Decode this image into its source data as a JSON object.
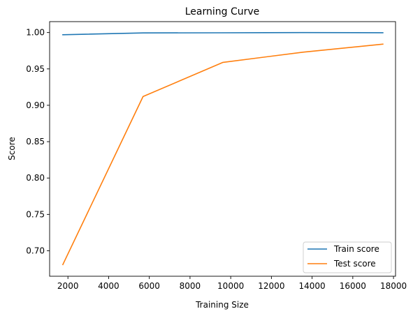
{
  "chart_data": {
    "type": "line",
    "title": "Learning Curve",
    "xlabel": "Training Size",
    "ylabel": "Score",
    "xlim": [
      1100,
      18100
    ],
    "ylim": [
      0.665,
      1.015
    ],
    "xticks": [
      2000,
      4000,
      6000,
      8000,
      10000,
      12000,
      14000,
      16000,
      18000
    ],
    "yticks": [
      0.7,
      0.75,
      0.8,
      0.85,
      0.9,
      0.95,
      1.0
    ],
    "ytick_labels": [
      "0.70",
      "0.75",
      "0.80",
      "0.85",
      "0.90",
      "0.95",
      "1.00"
    ],
    "grid": false,
    "legend": {
      "position": "lower-right"
    },
    "x": [
      1750,
      5690,
      9620,
      13550,
      17480
    ],
    "series": [
      {
        "name": "Train score",
        "color": "#1f77b4",
        "values": [
          0.997,
          0.9995,
          0.9997,
          0.9999,
          0.9998
        ]
      },
      {
        "name": "Test score",
        "color": "#ff7f0e",
        "values": [
          0.681,
          0.912,
          0.959,
          0.973,
          0.984
        ]
      }
    ]
  }
}
